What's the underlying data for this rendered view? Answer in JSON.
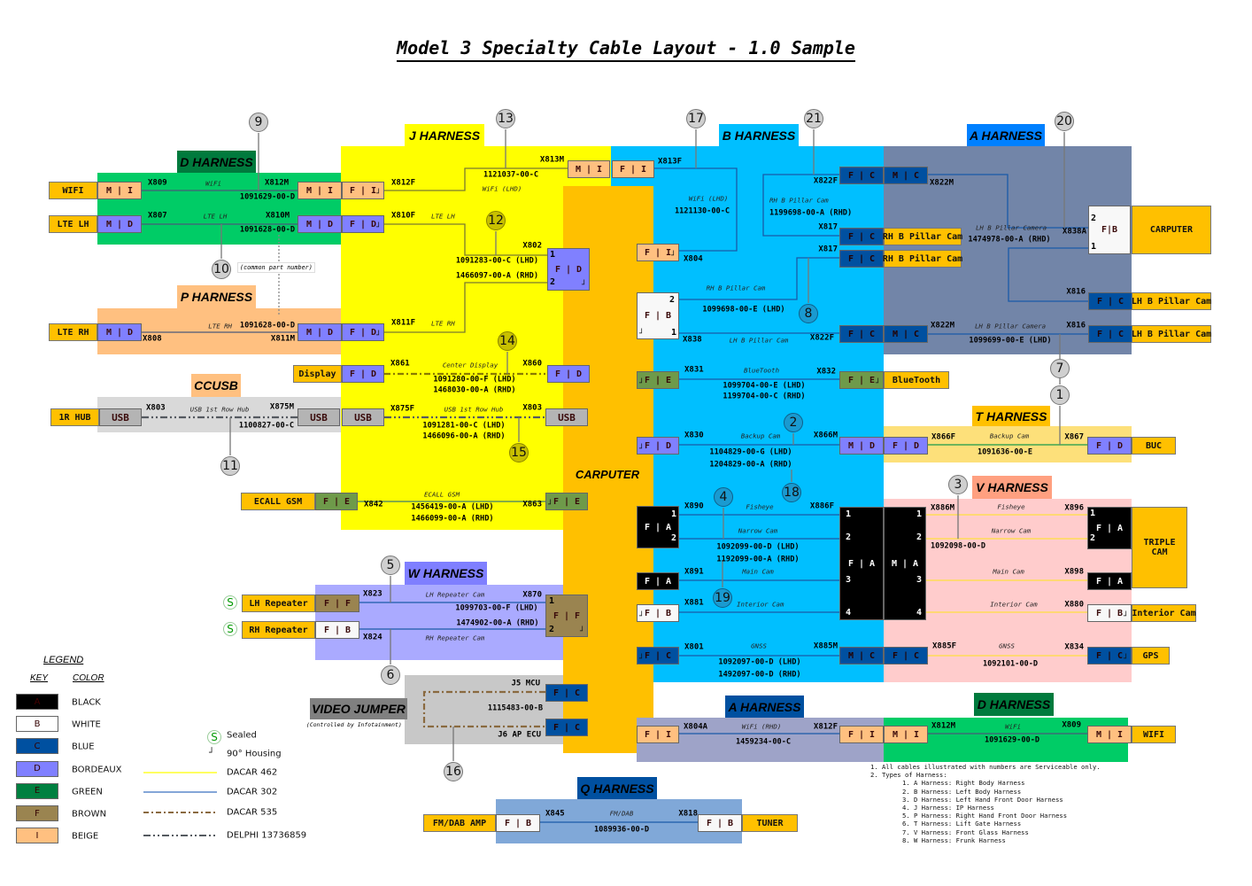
{
  "title": "Model 3 Specialty Cable Layout - 1.0 Sample",
  "harness_titles": {
    "d1": "D HARNESS",
    "p": "P HARNESS",
    "ccusb": "CCUSB",
    "j": "J HARNESS",
    "b": "B HARNESS",
    "a1": "A HARNESS",
    "t": "T HARNESS",
    "v": "V HARNESS",
    "w": "W HARNESS",
    "video": "VIDEO JUMPER",
    "video_note": "(Controlled by Infotainment)",
    "a2": "A HARNESS",
    "d2": "D HARNESS",
    "q": "Q HARNESS",
    "carputer": "CARPUTER"
  },
  "common_part_note": "(common part number)",
  "connectors": [
    "M | I",
    "M | D",
    "M | I",
    "F | I",
    "M | D",
    "F | D",
    "M | D",
    "M | D",
    "F | D",
    "F | D",
    "USB",
    "USB",
    "USB",
    "F | D",
    "F | D",
    "USB",
    "F | E",
    "F | E",
    "M | I",
    "F | I",
    "F | I",
    "F | B",
    "F | C",
    "M | C",
    "F | C",
    "F | C",
    "F | C",
    "M | C",
    "F | E",
    "F | E",
    "F | D",
    "M | D",
    "F | D",
    "F | A",
    "F | A",
    "F | B",
    "F | A",
    "M | A",
    "F | C",
    "M | C",
    "F | C",
    "F|B",
    "F | C",
    "F | C",
    "F | D",
    "F | A",
    "F | A",
    "F | B",
    "F | C",
    "F | F",
    "F | B",
    "F | F",
    "F | C",
    "F | C",
    "F | I",
    "F | I",
    "M | I",
    "M | I",
    "F | B",
    "F | B"
  ],
  "devices": [
    "WIFI",
    "LTE LH",
    "LTE RH",
    "Display",
    "1R HUB",
    "ECALL GSM",
    "RH B Pillar Cam",
    "RH B Pillar Cam",
    "BlueTooth",
    "CARPUTER",
    "LH B Pillar Cam",
    "LH B Pillar Cam",
    "BUC",
    "TRIPLE\nCAM",
    "Interior Cam",
    "GPS",
    "LH Repeater",
    "RH Repeater",
    "WIFI",
    "FM/DAB AMP",
    "TUNER"
  ],
  "pins": [
    "1",
    "2",
    "3",
    "4"
  ],
  "cables": [
    {
      "ids": [
        "X809",
        "X812M"
      ],
      "names": [
        "WiFi"
      ],
      "parts": [
        "1091629-00-D"
      ]
    },
    {
      "ids": [
        "X807",
        "X810M"
      ],
      "names": [
        "LTE LH"
      ],
      "parts": [
        "1091628-00-D"
      ]
    },
    {
      "ids": [
        "X808",
        "X811M"
      ],
      "names": [
        "LTE RH"
      ],
      "parts": [
        "1091628-00-D"
      ]
    },
    {
      "ids": [
        "X803",
        "X875M"
      ],
      "names": [
        "USB 1st Row Hub"
      ],
      "parts": [
        "1100827-00-C"
      ]
    },
    {
      "ids": [
        "X812F",
        "X813M"
      ],
      "names": [
        "WiFi (LHD)"
      ],
      "parts": [
        "1121037-00-C"
      ]
    },
    {
      "ids": [
        "X810F",
        "X811F",
        "X802"
      ],
      "names": [
        "LTE LH",
        "LTE RH"
      ],
      "parts": [
        "1091283-00-C (LHD)",
        "1466097-00-A (RHD)"
      ]
    },
    {
      "ids": [
        "X861",
        "X860"
      ],
      "names": [
        "Center Display"
      ],
      "parts": [
        "1091280-00-F (LHD)",
        "1468030-00-A (RHD)"
      ]
    },
    {
      "ids": [
        "X875F",
        "X803"
      ],
      "names": [
        "USB 1st Row Hub"
      ],
      "parts": [
        "1091281-00-C (LHD)",
        "1466096-00-A (RHD)"
      ]
    },
    {
      "ids": [
        "X842",
        "X863"
      ],
      "names": [
        "ECALL GSM"
      ],
      "parts": [
        "1456419-00-A (LHD)",
        "1466099-00-A (RHD)"
      ]
    },
    {
      "ids": [
        "X813F",
        "X804"
      ],
      "names": [
        "WiFi (LHD)"
      ],
      "parts": [
        "1121130-00-C"
      ]
    },
    {
      "ids": [
        "X822F",
        "X817"
      ],
      "names": [
        "RH B Pillar Cam"
      ],
      "parts": [
        "1199698-00-A (RHD)"
      ]
    },
    {
      "ids": [
        "X838",
        "X817"
      ],
      "names": [
        "RH B Pillar Cam"
      ],
      "parts": [
        "1099698-00-E (LHD)"
      ]
    },
    {
      "ids": [
        "X838",
        "X822F"
      ],
      "names": [
        "LH B Pillar Cam"
      ],
      "parts": []
    },
    {
      "ids": [
        "X831",
        "X832"
      ],
      "names": [
        "BlueTooth"
      ],
      "parts": [
        "1099704-00-E (LHD)",
        "1199704-00-C (RHD)"
      ]
    },
    {
      "ids": [
        "X830",
        "X866M"
      ],
      "names": [
        "Backup Cam"
      ],
      "parts": [
        "1104829-00-G (LHD)",
        "1204829-00-A (RHD)"
      ]
    },
    {
      "ids": [
        "X890",
        "X891",
        "X881",
        "X886F"
      ],
      "names": [
        "Fisheye",
        "Narrow Cam",
        "Main Cam",
        "Interior Cam"
      ],
      "parts": [
        "1092099-00-D (LHD)",
        "1192099-00-A (RHD)"
      ]
    },
    {
      "ids": [
        "X801",
        "X885M"
      ],
      "names": [
        "GNSS"
      ],
      "parts": [
        "1092097-00-D (LHD)",
        "1492097-00-D (RHD)"
      ]
    },
    {
      "ids": [
        "X822M",
        "X838A",
        "X816"
      ],
      "names": [
        "LH B Pillar Camera"
      ],
      "parts": [
        "1474978-00-A (RHD)"
      ]
    },
    {
      "ids": [
        "X822M",
        "X816"
      ],
      "names": [
        "LH B Pillar Camera"
      ],
      "parts": [
        "1099699-00-E (LHD)"
      ]
    },
    {
      "ids": [
        "X866F",
        "X867"
      ],
      "names": [
        "Backup Cam"
      ],
      "parts": [
        "1091636-00-E"
      ]
    },
    {
      "ids": [
        "X886M",
        "X896",
        "X898",
        "X880"
      ],
      "names": [
        "Fisheye",
        "Narrow Cam",
        "Main Cam",
        "Interior Cam"
      ],
      "parts": [
        "1092098-00-D"
      ]
    },
    {
      "ids": [
        "X885F",
        "X834"
      ],
      "names": [
        "GNSS"
      ],
      "parts": [
        "1092101-00-D"
      ]
    },
    {
      "ids": [
        "X823",
        "X870",
        "X824"
      ],
      "names": [
        "LH Repeater Cam",
        "RH Repeater Cam"
      ],
      "parts": [
        "1099703-00-F (LHD)",
        "1474902-00-A (RHD)"
      ]
    },
    {
      "ids": [
        "J5 MCU",
        "J6 AP ECU"
      ],
      "names": [],
      "parts": [
        "1115483-00-B"
      ]
    },
    {
      "ids": [
        "X804A",
        "X812F"
      ],
      "names": [
        "WiFi (RHD)"
      ],
      "parts": [
        "1459234-00-C"
      ]
    },
    {
      "ids": [
        "X812M",
        "X809"
      ],
      "names": [
        "WiFi"
      ],
      "parts": [
        "1091629-00-D"
      ]
    },
    {
      "ids": [
        "X845",
        "X818"
      ],
      "names": [
        "FM/DAB"
      ],
      "parts": [
        "1089936-00-D"
      ]
    }
  ],
  "callouts": [
    "1",
    "2",
    "3",
    "4",
    "5",
    "6",
    "7",
    "8",
    "9",
    "10",
    "11",
    "12",
    "13",
    "14",
    "15",
    "16",
    "17",
    "18",
    "19",
    "20",
    "21"
  ],
  "legend": {
    "title": "LEGEND",
    "key_header": "KEY",
    "color_header": "COLOR",
    "keys": [
      {
        "key": "A",
        "color": "BLACK",
        "hex": "#000000"
      },
      {
        "key": "B",
        "color": "WHITE",
        "hex": "#ffffff"
      },
      {
        "key": "C",
        "color": "BLUE",
        "hex": "#0050a0"
      },
      {
        "key": "D",
        "color": "BORDEAUX",
        "hex": "#8080ff"
      },
      {
        "key": "E",
        "color": "GREEN",
        "hex": "#008040"
      },
      {
        "key": "F",
        "color": "BROWN",
        "hex": "#9a8450"
      },
      {
        "key": "I",
        "color": "BEIGE",
        "hex": "#ffc080"
      }
    ],
    "symbols": [
      {
        "glyph": "S",
        "label": "Sealed"
      },
      {
        "glyph": "┘",
        "label": "90° Housing"
      }
    ],
    "lines": [
      {
        "label": "DACAR 462",
        "color": "#ffff00",
        "style": "solid"
      },
      {
        "label": "DACAR 302",
        "color": "#3a70c0",
        "style": "solid"
      },
      {
        "label": "DACAR 535",
        "color": "#8a6a40",
        "style": "dash-dot"
      },
      {
        "label": "DELPHI 13736859",
        "color": "#555a60",
        "style": "dash-dot-dot"
      }
    ]
  },
  "notes": {
    "lines": [
      "1. All cables illustrated with numbers are Serviceable only.",
      "2. Types of Harness:"
    ],
    "harness_types": [
      "1. A Harness: Right Body Harness",
      "2. B Harness: Left Body Harness",
      "3. D Harness: Left Hand Front Door Harness",
      "4. J Harness: IP Harness",
      "5. P Harness: Right Hand Front Door Harness",
      "6. T Harness: Lift Gate Harness",
      "7. V Harness: Front Glass Harness",
      "8. W Harness: Frunk Harness"
    ]
  }
}
